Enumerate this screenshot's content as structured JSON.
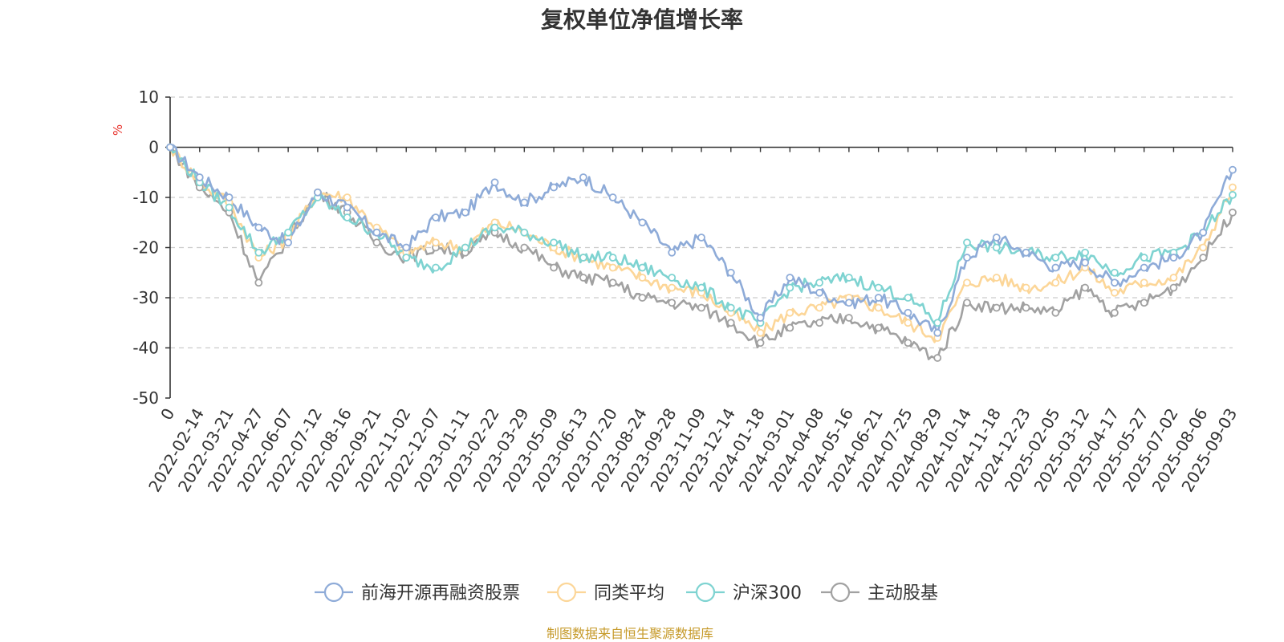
{
  "chart_data": {
    "type": "line",
    "title": "复权单位净值增长率",
    "ylabel": "%",
    "ylim": [
      -50,
      10
    ],
    "yticks": [
      10,
      0,
      -10,
      -20,
      -30,
      -40,
      -50
    ],
    "grid": true,
    "legend_position": "bottom",
    "source_note": "制图数据来自恒生聚源数据库",
    "x": [
      "0",
      "2022-02-14",
      "2022-03-21",
      "2022-04-27",
      "2022-06-07",
      "2022-07-12",
      "2022-08-16",
      "2022-09-21",
      "2022-11-02",
      "2022-12-07",
      "2023-01-11",
      "2023-02-22",
      "2023-03-29",
      "2023-05-09",
      "2023-06-13",
      "2023-07-20",
      "2023-08-24",
      "2023-09-28",
      "2023-11-09",
      "2023-12-14",
      "2024-01-18",
      "2024-03-01",
      "2024-04-08",
      "2024-05-16",
      "2024-06-21",
      "2024-07-25",
      "2024-08-29",
      "2024-10-14",
      "2024-11-18",
      "2024-12-23",
      "2025-02-05",
      "2025-03-12",
      "2025-04-17",
      "2025-05-27",
      "2025-07-02",
      "2025-08-06",
      "2025-09-03"
    ],
    "series": [
      {
        "name": "前海开源再融资股票",
        "color": "#8eabd8",
        "values": [
          0,
          -6,
          -10,
          -16,
          -19,
          -9,
          -12,
          -17,
          -20,
          -14,
          -13,
          -7,
          -11,
          -8,
          -6,
          -10,
          -15,
          -21,
          -18,
          -25,
          -34,
          -26,
          -29,
          -31,
          -30,
          -33,
          -37,
          -22,
          -18,
          -21,
          -24,
          -23,
          -27,
          -24,
          -22,
          -17,
          -4.5
        ]
      },
      {
        "name": "同类平均",
        "color": "#fcd698",
        "values": [
          0,
          -7,
          -11,
          -22,
          -18,
          -9,
          -10,
          -16,
          -21,
          -19,
          -20,
          -15,
          -17,
          -20,
          -22,
          -24,
          -26,
          -28,
          -29,
          -33,
          -37,
          -33,
          -32,
          -30,
          -32,
          -35,
          -38,
          -27,
          -26,
          -28,
          -27,
          -24,
          -29,
          -27,
          -26,
          -20,
          -8
        ]
      },
      {
        "name": "沪深300",
        "color": "#7ed3d1",
        "values": [
          0,
          -7,
          -12,
          -21,
          -17,
          -10,
          -14,
          -17,
          -22,
          -24,
          -20,
          -16,
          -17,
          -19,
          -22,
          -22,
          -24,
          -26,
          -28,
          -32,
          -35,
          -28,
          -27,
          -26,
          -28,
          -30,
          -35,
          -19,
          -20,
          -21,
          -22,
          -21,
          -25,
          -22,
          -21,
          -17,
          -9.5
        ]
      },
      {
        "name": "主动股基",
        "color": "#a1a1a1",
        "values": [
          0,
          -8,
          -13,
          -27,
          -18,
          -9,
          -13,
          -19,
          -22,
          -20,
          -21,
          -17,
          -20,
          -24,
          -26,
          -27,
          -30,
          -31,
          -32,
          -35,
          -39,
          -36,
          -35,
          -34,
          -36,
          -39,
          -42,
          -31,
          -32,
          -32,
          -33,
          -28,
          -33,
          -31,
          -28,
          -22,
          -13
        ]
      }
    ]
  }
}
